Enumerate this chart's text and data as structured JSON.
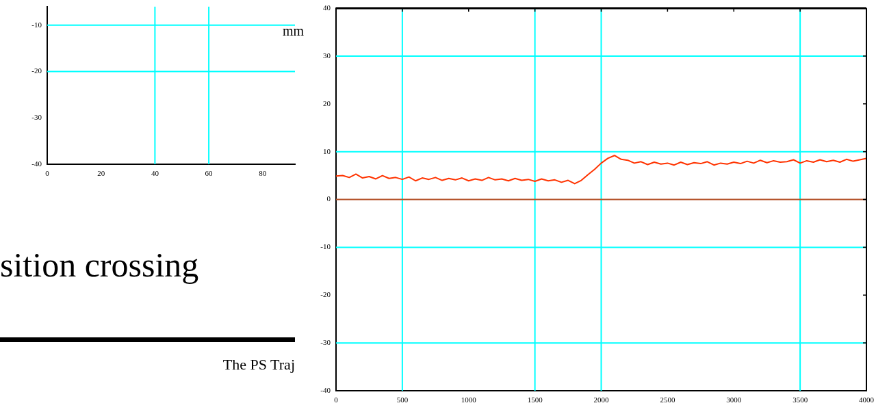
{
  "chart_data": [
    {
      "type": "line",
      "annotations": [
        "sition crossing",
        "The PS Traj"
      ],
      "xlim": [
        0,
        92
      ],
      "ylim": [
        -40,
        -6
      ],
      "xticks": [
        0,
        20,
        40,
        60,
        80
      ],
      "yticks": [
        -40,
        -30,
        -20,
        -10
      ],
      "grid": false,
      "legend": false,
      "ref_lines": [
        {
          "axis": "y",
          "value": -10,
          "color": "#00ffff"
        },
        {
          "axis": "y",
          "value": -20,
          "color": "#00ffff"
        },
        {
          "axis": "x",
          "value": 40,
          "color": "#00ffff"
        },
        {
          "axis": "x",
          "value": 60,
          "color": "#00ffff"
        }
      ]
    },
    {
      "type": "line",
      "ylabel": "mm",
      "xlim": [
        0,
        4000
      ],
      "ylim": [
        -40,
        40
      ],
      "xticks": [
        0,
        500,
        1000,
        1500,
        2000,
        2500,
        3000,
        3500,
        4000
      ],
      "yticks": [
        -40,
        -30,
        -20,
        -10,
        0,
        10,
        20,
        30,
        40
      ],
      "grid": false,
      "legend": false,
      "marker": "none",
      "ref_lines": [
        {
          "axis": "y",
          "value": 30,
          "color": "#00ffff"
        },
        {
          "axis": "y",
          "value": 10,
          "color": "#00ffff"
        },
        {
          "axis": "y",
          "value": -10,
          "color": "#00ffff"
        },
        {
          "axis": "y",
          "value": -30,
          "color": "#00ffff"
        },
        {
          "axis": "x",
          "value": 500,
          "color": "#00ffff"
        },
        {
          "axis": "x",
          "value": 1500,
          "color": "#00ffff"
        },
        {
          "axis": "x",
          "value": 2000,
          "color": "#00ffff"
        },
        {
          "axis": "x",
          "value": 3500,
          "color": "#00ffff"
        },
        {
          "axis": "y",
          "value": 0,
          "color": "#b5532b"
        }
      ],
      "x": [
        0,
        50,
        100,
        150,
        200,
        250,
        300,
        350,
        400,
        450,
        500,
        550,
        600,
        650,
        700,
        750,
        800,
        850,
        900,
        950,
        1000,
        1050,
        1100,
        1150,
        1200,
        1250,
        1300,
        1350,
        1400,
        1450,
        1500,
        1550,
        1600,
        1650,
        1700,
        1750,
        1800,
        1850,
        1900,
        1950,
        2000,
        2050,
        2100,
        2150,
        2200,
        2250,
        2300,
        2350,
        2400,
        2450,
        2500,
        2550,
        2600,
        2650,
        2700,
        2750,
        2800,
        2850,
        2900,
        2950,
        3000,
        3050,
        3100,
        3150,
        3200,
        3250,
        3300,
        3350,
        3400,
        3450,
        3500,
        3550,
        3600,
        3650,
        3700,
        3750,
        3800,
        3850,
        3900,
        3950,
        4000
      ],
      "series": [
        {
          "color": "#ff3300",
          "values": [
            4.9,
            5.0,
            4.6,
            5.3,
            4.5,
            4.8,
            4.3,
            5.0,
            4.4,
            4.6,
            4.2,
            4.7,
            3.9,
            4.5,
            4.2,
            4.6,
            4.0,
            4.4,
            4.1,
            4.5,
            3.9,
            4.3,
            4.0,
            4.6,
            4.1,
            4.3,
            3.9,
            4.4,
            4.0,
            4.2,
            3.8,
            4.3,
            3.9,
            4.1,
            3.6,
            4.0,
            3.3,
            4.0,
            5.2,
            6.3,
            7.6,
            8.6,
            9.2,
            8.4,
            8.2,
            7.6,
            7.9,
            7.3,
            7.8,
            7.4,
            7.6,
            7.2,
            7.8,
            7.3,
            7.7,
            7.5,
            7.9,
            7.2,
            7.6,
            7.4,
            7.8,
            7.5,
            8.0,
            7.6,
            8.2,
            7.7,
            8.1,
            7.8,
            7.9,
            8.3,
            7.6,
            8.1,
            7.8,
            8.3,
            7.9,
            8.2,
            7.8,
            8.4,
            8.0,
            8.3,
            8.6
          ]
        }
      ]
    }
  ]
}
